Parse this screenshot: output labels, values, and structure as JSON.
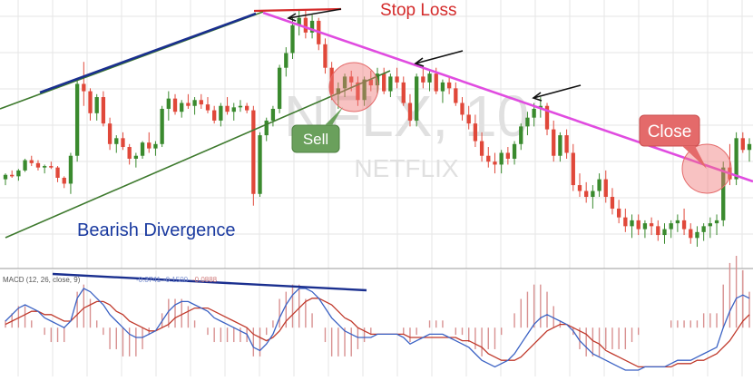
{
  "chart_data": {
    "type": "candlestick",
    "grid": true,
    "colors": {
      "up": "#3a8a2e",
      "down": "#e0483a",
      "background": "#ffffff",
      "grid": "#e6e6e6",
      "macd_line": "#3b62c4",
      "signal_line": "#c0392b",
      "histogram": "#d89090"
    },
    "watermark": {
      "ticker": "NFLX, 10",
      "name": "NETFLIX"
    },
    "candles": [
      [
        100,
        104,
        96,
        103
      ],
      [
        103,
        106,
        101,
        102
      ],
      [
        102,
        107,
        99,
        106
      ],
      [
        106,
        114,
        105,
        113
      ],
      [
        113,
        116,
        109,
        111
      ],
      [
        111,
        113,
        106,
        108
      ],
      [
        108,
        110,
        104,
        109
      ],
      [
        109,
        112,
        107,
        108
      ],
      [
        108,
        109,
        98,
        101
      ],
      [
        101,
        102,
        94,
        97
      ],
      [
        97,
        118,
        90,
        116
      ],
      [
        116,
        168,
        112,
        165
      ],
      [
        165,
        180,
        150,
        160
      ],
      [
        160,
        162,
        140,
        145
      ],
      [
        145,
        158,
        140,
        156
      ],
      [
        156,
        160,
        136,
        138
      ],
      [
        138,
        142,
        120,
        124
      ],
      [
        124,
        130,
        118,
        128
      ],
      [
        128,
        132,
        120,
        122
      ],
      [
        122,
        124,
        110,
        114
      ],
      [
        114,
        118,
        108,
        116
      ],
      [
        116,
        126,
        114,
        125
      ],
      [
        125,
        132,
        118,
        121
      ],
      [
        121,
        126,
        116,
        124
      ],
      [
        124,
        150,
        122,
        148
      ],
      [
        148,
        160,
        140,
        155
      ],
      [
        155,
        158,
        144,
        146
      ],
      [
        146,
        154,
        142,
        152
      ],
      [
        152,
        158,
        148,
        150
      ],
      [
        150,
        156,
        144,
        154
      ],
      [
        154,
        158,
        148,
        151
      ],
      [
        151,
        156,
        145,
        147
      ],
      [
        147,
        150,
        138,
        140
      ],
      [
        140,
        152,
        136,
        150
      ],
      [
        150,
        156,
        144,
        146
      ],
      [
        146,
        152,
        140,
        149
      ],
      [
        149,
        154,
        146,
        150
      ],
      [
        150,
        152,
        145,
        147
      ],
      [
        147,
        150,
        82,
        90
      ],
      [
        90,
        132,
        88,
        130
      ],
      [
        130,
        142,
        126,
        140
      ],
      [
        140,
        150,
        136,
        148
      ],
      [
        148,
        178,
        145,
        176
      ],
      [
        176,
        190,
        170,
        186
      ],
      [
        186,
        210,
        182,
        205
      ],
      [
        205,
        216,
        198,
        210
      ],
      [
        210,
        215,
        196,
        200
      ],
      [
        200,
        212,
        196,
        208
      ],
      [
        208,
        210,
        188,
        192
      ],
      [
        192,
        196,
        172,
        176
      ],
      [
        176,
        180,
        154,
        158
      ],
      [
        158,
        166,
        148,
        162
      ],
      [
        162,
        172,
        156,
        170
      ],
      [
        170,
        174,
        160,
        166
      ],
      [
        166,
        170,
        150,
        154
      ],
      [
        154,
        170,
        150,
        168
      ],
      [
        168,
        174,
        160,
        164
      ],
      [
        164,
        176,
        158,
        172
      ],
      [
        172,
        176,
        158,
        160
      ],
      [
        160,
        172,
        156,
        170
      ],
      [
        170,
        176,
        162,
        166
      ],
      [
        166,
        170,
        150,
        152
      ],
      [
        152,
        158,
        136,
        140
      ],
      [
        140,
        172,
        136,
        170
      ],
      [
        170,
        176,
        162,
        166
      ],
      [
        166,
        174,
        160,
        172
      ],
      [
        172,
        176,
        158,
        160
      ],
      [
        160,
        168,
        152,
        166
      ],
      [
        166,
        170,
        158,
        162
      ],
      [
        162,
        166,
        150,
        152
      ],
      [
        152,
        156,
        140,
        144
      ],
      [
        144,
        150,
        134,
        138
      ],
      [
        138,
        144,
        122,
        126
      ],
      [
        126,
        132,
        112,
        116
      ],
      [
        116,
        122,
        108,
        112
      ],
      [
        112,
        118,
        104,
        110
      ],
      [
        110,
        120,
        104,
        118
      ],
      [
        118,
        122,
        110,
        114
      ],
      [
        114,
        126,
        110,
        124
      ],
      [
        124,
        138,
        120,
        136
      ],
      [
        136,
        146,
        130,
        142
      ],
      [
        142,
        152,
        136,
        148
      ],
      [
        148,
        156,
        142,
        150
      ],
      [
        150,
        152,
        130,
        134
      ],
      [
        134,
        140,
        112,
        116
      ],
      [
        116,
        132,
        112,
        130
      ],
      [
        130,
        134,
        114,
        118
      ],
      [
        118,
        124,
        92,
        96
      ],
      [
        96,
        104,
        88,
        92
      ],
      [
        92,
        98,
        84,
        88
      ],
      [
        88,
        96,
        80,
        92
      ],
      [
        92,
        104,
        88,
        100
      ],
      [
        100,
        106,
        84,
        88
      ],
      [
        88,
        94,
        76,
        80
      ],
      [
        80,
        86,
        70,
        74
      ],
      [
        74,
        80,
        64,
        68
      ],
      [
        68,
        76,
        60,
        72
      ],
      [
        72,
        76,
        62,
        66
      ],
      [
        66,
        72,
        60,
        70
      ],
      [
        70,
        74,
        62,
        68
      ],
      [
        68,
        72,
        58,
        62
      ],
      [
        62,
        70,
        56,
        66
      ],
      [
        66,
        72,
        60,
        70
      ],
      [
        70,
        76,
        64,
        72
      ],
      [
        72,
        80,
        62,
        66
      ],
      [
        66,
        70,
        56,
        60
      ],
      [
        60,
        68,
        54,
        64
      ],
      [
        64,
        70,
        58,
        68
      ],
      [
        68,
        74,
        60,
        70
      ],
      [
        70,
        76,
        62,
        72
      ],
      [
        72,
        112,
        68,
        108
      ],
      [
        108,
        124,
        96,
        100
      ],
      [
        100,
        132,
        96,
        128
      ],
      [
        128,
        132,
        118,
        120
      ],
      [
        120,
        128,
        112,
        124
      ]
    ],
    "annotations": {
      "stop_loss": "Stop Loss",
      "sell": "Sell",
      "close": "Close",
      "divergence": "Bearish Divergence"
    },
    "macd": {
      "label": "MACD (12, 26, close, 9)",
      "values": [
        "-0.3741",
        "-0.1500",
        "-0.0888"
      ],
      "macd_line": [
        0.2,
        0.4,
        0.6,
        0.7,
        0.6,
        0.5,
        0.3,
        0.2,
        0.1,
        0.0,
        0.2,
        0.9,
        1.2,
        1.1,
        0.9,
        0.7,
        0.4,
        0.2,
        0.0,
        -0.2,
        -0.3,
        -0.3,
        -0.2,
        -0.1,
        0.2,
        0.5,
        0.7,
        0.8,
        0.8,
        0.7,
        0.6,
        0.5,
        0.3,
        0.2,
        0.1,
        0.0,
        -0.1,
        -0.2,
        -0.6,
        -0.7,
        -0.5,
        -0.2,
        0.3,
        0.7,
        1.0,
        1.2,
        1.2,
        1.1,
        0.9,
        0.6,
        0.3,
        0.1,
        -0.1,
        -0.2,
        -0.3,
        -0.3,
        -0.3,
        -0.2,
        -0.2,
        -0.2,
        -0.2,
        -0.3,
        -0.5,
        -0.4,
        -0.3,
        -0.2,
        -0.2,
        -0.2,
        -0.3,
        -0.4,
        -0.5,
        -0.6,
        -0.8,
        -1.0,
        -1.1,
        -1.2,
        -1.1,
        -1.0,
        -0.8,
        -0.5,
        -0.2,
        0.1,
        0.3,
        0.4,
        0.3,
        0.2,
        0.1,
        -0.1,
        -0.4,
        -0.6,
        -0.8,
        -0.9,
        -1.0,
        -1.1,
        -1.2,
        -1.3,
        -1.3,
        -1.3,
        -1.2,
        -1.2,
        -1.2,
        -1.2,
        -1.1,
        -1.0,
        -1.0,
        -1.0,
        -0.9,
        -0.8,
        -0.7,
        -0.6,
        0.0,
        0.5,
        0.9,
        1.0,
        0.9
      ],
      "signal_line": [
        0.1,
        0.2,
        0.3,
        0.4,
        0.5,
        0.5,
        0.4,
        0.4,
        0.3,
        0.2,
        0.2,
        0.4,
        0.6,
        0.7,
        0.8,
        0.8,
        0.7,
        0.5,
        0.4,
        0.2,
        0.1,
        0.0,
        -0.1,
        -0.1,
        0.0,
        0.1,
        0.3,
        0.4,
        0.5,
        0.6,
        0.6,
        0.6,
        0.5,
        0.4,
        0.3,
        0.2,
        0.1,
        0.0,
        -0.2,
        -0.3,
        -0.4,
        -0.3,
        -0.1,
        0.2,
        0.4,
        0.6,
        0.8,
        0.9,
        0.9,
        0.8,
        0.7,
        0.5,
        0.3,
        0.2,
        0.0,
        -0.1,
        -0.2,
        -0.2,
        -0.2,
        -0.2,
        -0.2,
        -0.2,
        -0.3,
        -0.3,
        -0.3,
        -0.3,
        -0.3,
        -0.3,
        -0.3,
        -0.3,
        -0.4,
        -0.4,
        -0.5,
        -0.6,
        -0.8,
        -0.9,
        -1.0,
        -1.0,
        -1.0,
        -0.9,
        -0.7,
        -0.5,
        -0.3,
        -0.1,
        0.0,
        0.1,
        0.1,
        0.0,
        -0.1,
        -0.2,
        -0.4,
        -0.5,
        -0.7,
        -0.8,
        -0.9,
        -1.0,
        -1.1,
        -1.2,
        -1.2,
        -1.2,
        -1.2,
        -1.2,
        -1.2,
        -1.1,
        -1.1,
        -1.1,
        -1.0,
        -1.0,
        -0.9,
        -0.8,
        -0.6,
        -0.4,
        -0.1,
        0.2,
        0.4
      ]
    }
  }
}
